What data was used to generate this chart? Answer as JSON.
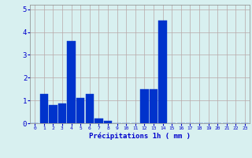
{
  "values": [
    0,
    1.3,
    0.8,
    0.85,
    3.6,
    1.1,
    1.3,
    0.2,
    0.1,
    0,
    0,
    0,
    1.5,
    1.5,
    4.5,
    0,
    0,
    0,
    0,
    0,
    0,
    0,
    0,
    0
  ],
  "bar_color": "#0033cc",
  "bar_edge_color": "#0055ff",
  "background_color": "#d8f0f0",
  "grid_color": "#b8a8a8",
  "xlabel": "Précipitations 1h ( mm )",
  "xlabel_color": "#0000cc",
  "tick_color": "#0000cc",
  "ylim": [
    0,
    5.2
  ],
  "yticks": [
    0,
    1,
    2,
    3,
    4,
    5
  ],
  "num_hours": 24,
  "figsize": [
    3.2,
    2.0
  ],
  "dpi": 100
}
